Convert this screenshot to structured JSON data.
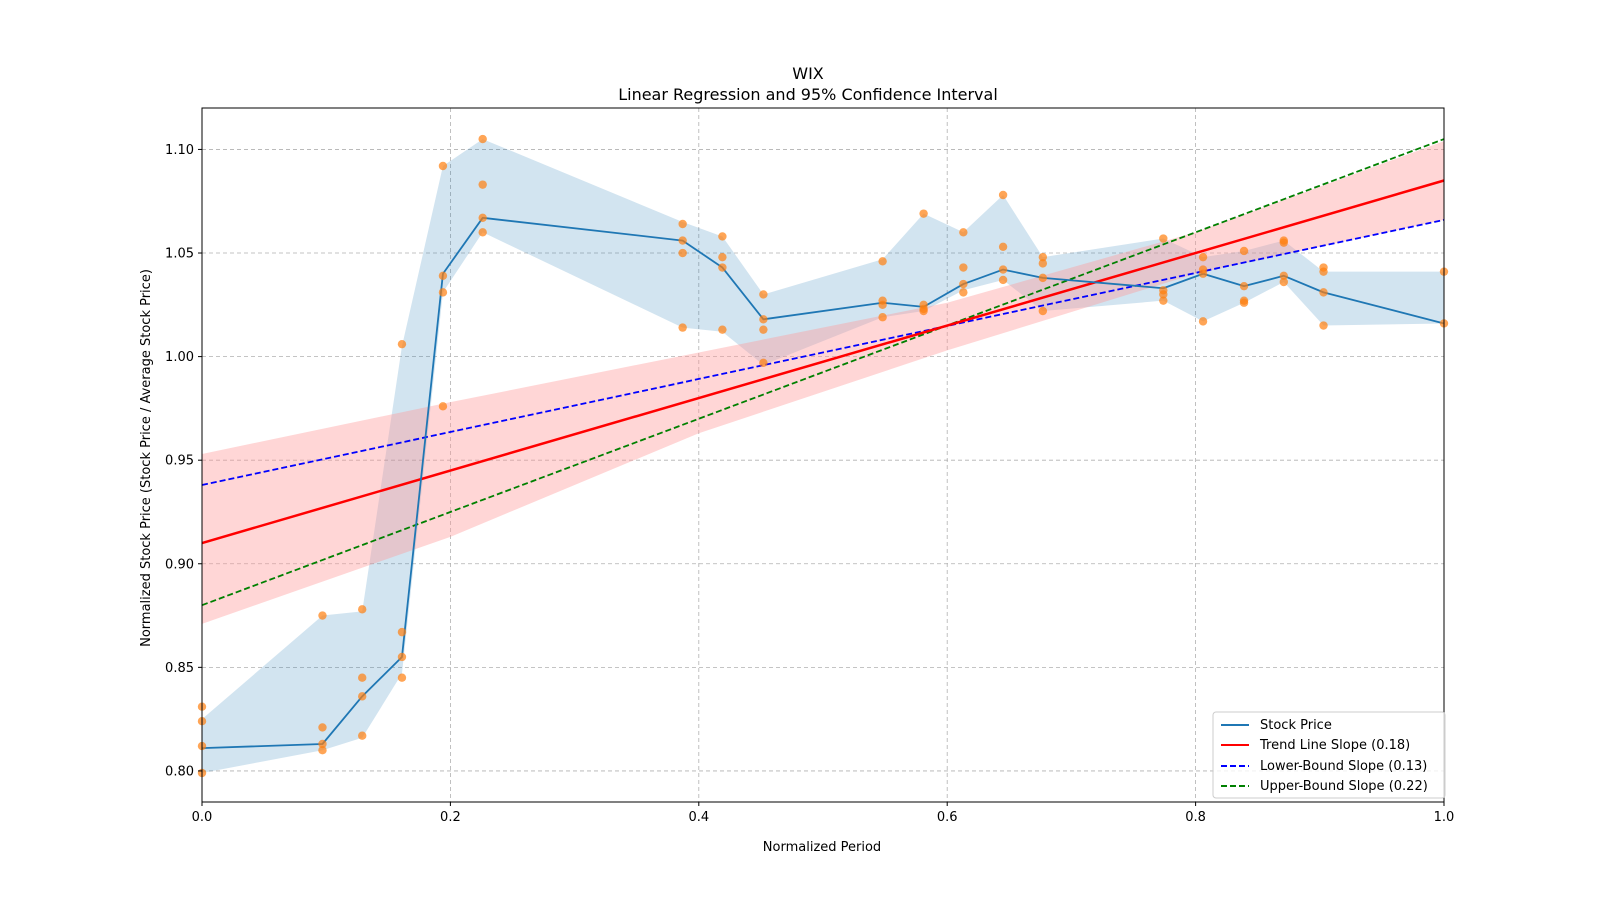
{
  "chart_data": {
    "type": "line",
    "title": "WIX",
    "subtitle": "Linear Regression and 95% Confidence Interval",
    "xlabel": "Normalized Period",
    "ylabel": "Normalized Stock Price (Stock Price / Average Stock Price)",
    "xlim": [
      0.0,
      1.0
    ],
    "ylim": [
      0.785,
      1.12
    ],
    "xticks": [
      0.0,
      0.2,
      0.4,
      0.6,
      0.8,
      1.0
    ],
    "xtick_labels": [
      "0.0",
      "0.2",
      "0.4",
      "0.6",
      "0.8",
      "1.0"
    ],
    "yticks": [
      0.8,
      0.85,
      0.9,
      0.95,
      1.0,
      1.05,
      1.1
    ],
    "ytick_labels": [
      "0.80",
      "0.85",
      "0.90",
      "0.95",
      "1.00",
      "1.05",
      "1.10"
    ],
    "grid": true,
    "legend_position": "bottom-right",
    "colors": {
      "stock": "#1f77b4",
      "band_fill": "#1f77b4",
      "trend": "#ff0000",
      "trend_ci_fill": "#ff9999",
      "lower_bound": "#0000ff",
      "upper_bound": "#008000",
      "points": "#ff7f0e"
    },
    "stock_price": {
      "name": "Stock Price",
      "x": [
        0.0,
        0.097,
        0.129,
        0.161,
        0.194,
        0.226,
        0.387,
        0.419,
        0.452,
        0.548,
        0.581,
        0.613,
        0.645,
        0.677,
        0.774,
        0.806,
        0.839,
        0.871,
        0.903,
        1.0
      ],
      "y": [
        0.811,
        0.813,
        0.836,
        0.855,
        1.04,
        1.067,
        1.056,
        1.043,
        1.018,
        1.026,
        1.024,
        1.035,
        1.042,
        1.038,
        1.033,
        1.04,
        1.034,
        1.039,
        1.031,
        1.016
      ],
      "band_upper": [
        0.825,
        0.875,
        0.877,
        1.005,
        1.092,
        1.105,
        1.065,
        1.058,
        1.03,
        1.047,
        1.069,
        1.06,
        1.078,
        1.048,
        1.057,
        1.048,
        1.051,
        1.056,
        1.041,
        1.041
      ],
      "band_lower": [
        0.799,
        0.81,
        0.816,
        0.847,
        1.031,
        1.06,
        1.014,
        1.012,
        0.996,
        1.019,
        1.022,
        1.032,
        1.037,
        1.022,
        1.027,
        1.017,
        1.026,
        1.036,
        1.015,
        1.016
      ]
    },
    "scatter": {
      "x": [
        0.0,
        0.0,
        0.0,
        0.0,
        0.097,
        0.097,
        0.097,
        0.097,
        0.129,
        0.129,
        0.129,
        0.129,
        0.161,
        0.161,
        0.161,
        0.161,
        0.194,
        0.194,
        0.194,
        0.194,
        0.226,
        0.226,
        0.226,
        0.226,
        0.387,
        0.387,
        0.387,
        0.387,
        0.419,
        0.419,
        0.419,
        0.419,
        0.452,
        0.452,
        0.452,
        0.452,
        0.548,
        0.548,
        0.548,
        0.548,
        0.581,
        0.581,
        0.581,
        0.581,
        0.613,
        0.613,
        0.613,
        0.613,
        0.645,
        0.645,
        0.645,
        0.645,
        0.677,
        0.677,
        0.677,
        0.677,
        0.774,
        0.774,
        0.774,
        0.774,
        0.806,
        0.806,
        0.806,
        0.806,
        0.839,
        0.839,
        0.839,
        0.839,
        0.871,
        0.871,
        0.871,
        0.871,
        0.903,
        0.903,
        0.903,
        0.903,
        1.0,
        1.0
      ],
      "y": [
        0.831,
        0.824,
        0.812,
        0.799,
        0.875,
        0.821,
        0.813,
        0.81,
        0.878,
        0.845,
        0.836,
        0.817,
        1.006,
        0.867,
        0.855,
        0.845,
        1.092,
        1.039,
        1.031,
        0.976,
        1.105,
        1.083,
        1.067,
        1.06,
        1.064,
        1.056,
        1.05,
        1.014,
        1.058,
        1.048,
        1.043,
        1.013,
        1.03,
        1.018,
        1.013,
        0.997,
        1.046,
        1.027,
        1.025,
        1.019,
        1.069,
        1.025,
        1.023,
        1.022,
        1.06,
        1.043,
        1.035,
        1.031,
        1.078,
        1.053,
        1.042,
        1.037,
        1.048,
        1.045,
        1.038,
        1.022,
        1.057,
        1.032,
        1.03,
        1.027,
        1.048,
        1.042,
        1.04,
        1.017,
        1.051,
        1.034,
        1.027,
        1.026,
        1.056,
        1.055,
        1.039,
        1.036,
        1.043,
        1.041,
        1.031,
        1.015,
        1.041,
        1.016
      ]
    },
    "trend_line": {
      "name": "Trend Line Slope (0.18)",
      "x": [
        0.0,
        1.0
      ],
      "y": [
        0.91,
        1.085
      ]
    },
    "trend_ci": {
      "x": [
        0.0,
        0.2,
        0.4,
        0.6,
        0.8,
        1.0
      ],
      "upper": [
        0.953,
        0.978,
        1.002,
        1.026,
        1.06,
        1.104
      ],
      "lower": [
        0.871,
        0.913,
        0.963,
        1.003,
        1.04,
        1.066
      ]
    },
    "lower_bound_line": {
      "name": "Lower-Bound Slope (0.13)",
      "x": [
        0.0,
        1.0
      ],
      "y": [
        0.938,
        1.066
      ]
    },
    "upper_bound_line": {
      "name": "Upper-Bound Slope (0.22)",
      "x": [
        0.0,
        1.0
      ],
      "y": [
        0.88,
        1.105
      ]
    },
    "legend": [
      "Stock Price",
      "Trend Line Slope (0.18)",
      "Lower-Bound Slope (0.13)",
      "Upper-Bound Slope (0.22)"
    ]
  }
}
